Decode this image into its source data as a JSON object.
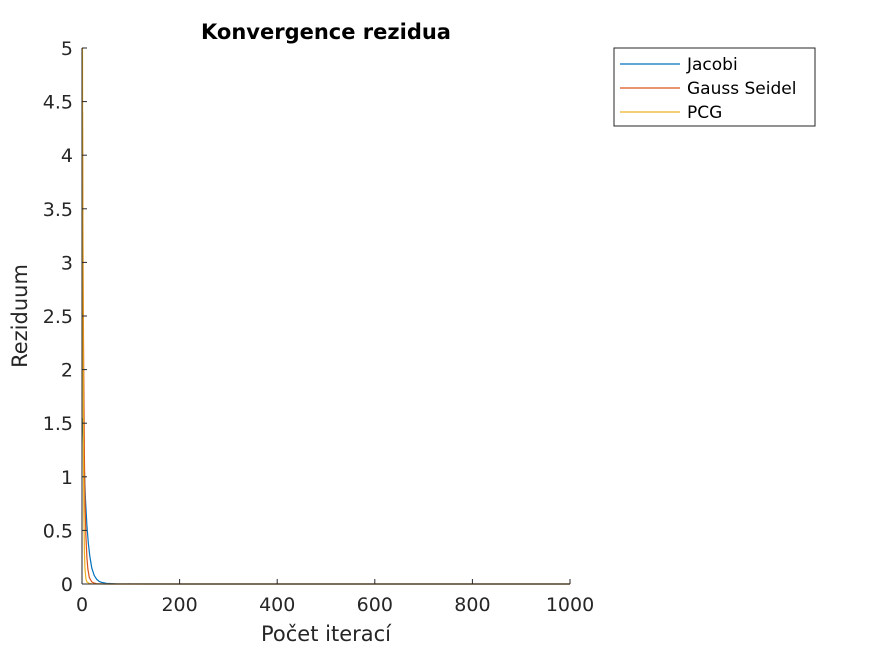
{
  "chart_data": {
    "type": "line",
    "title": "Konvergence rezidua",
    "xlabel": "Počet iterací",
    "ylabel": "Reziduum",
    "xlim": [
      0,
      1000
    ],
    "ylim": [
      0,
      5
    ],
    "xticks": [
      0,
      200,
      400,
      600,
      800,
      1000
    ],
    "xtick_labels": [
      "0",
      "200",
      "400",
      "600",
      "800",
      "1000"
    ],
    "yticks": [
      0,
      0.5,
      1,
      1.5,
      2,
      2.5,
      3,
      3.5,
      4,
      4.5,
      5
    ],
    "ytick_labels": [
      "0",
      "0.5",
      "1",
      "1.5",
      "2",
      "2.5",
      "3",
      "3.5",
      "4",
      "4.5",
      "5"
    ],
    "grid": false,
    "legend_position": "outside-top-right",
    "series": [
      {
        "name": "Jacobi",
        "color": "#0072BD",
        "x": [
          1,
          3,
          5,
          7,
          10,
          13,
          16,
          20,
          25,
          30,
          35,
          40,
          50,
          70,
          100,
          200,
          400,
          600,
          800,
          1000
        ],
        "y": [
          1.55,
          1.35,
          1.05,
          0.8,
          0.55,
          0.38,
          0.26,
          0.15,
          0.08,
          0.045,
          0.025,
          0.015,
          0.006,
          0.002,
          0.0005,
          0,
          0,
          0,
          0,
          0
        ]
      },
      {
        "name": "Gauss Seidel",
        "color": "#D95319",
        "x": [
          1,
          2,
          3,
          4,
          5,
          6,
          8,
          10,
          12,
          15,
          20,
          25,
          30,
          40,
          60,
          100,
          200,
          400,
          600,
          800,
          1000
        ],
        "y": [
          4.4,
          3.2,
          2.3,
          1.7,
          1.15,
          0.8,
          0.45,
          0.25,
          0.14,
          0.06,
          0.02,
          0.008,
          0.003,
          0.001,
          0.0002,
          0,
          0,
          0,
          0,
          0,
          0
        ]
      },
      {
        "name": "PCG",
        "color": "#EDB120",
        "x": [
          1,
          1.5,
          2,
          3,
          4,
          5,
          6,
          8,
          10,
          15,
          20,
          40,
          100,
          200,
          400,
          600,
          800,
          1000
        ],
        "y": [
          5.0,
          3.5,
          2.5,
          1.2,
          0.6,
          0.3,
          0.15,
          0.05,
          0.02,
          0.005,
          0.001,
          0.0002,
          0,
          0,
          0,
          0,
          0,
          0
        ]
      }
    ]
  }
}
